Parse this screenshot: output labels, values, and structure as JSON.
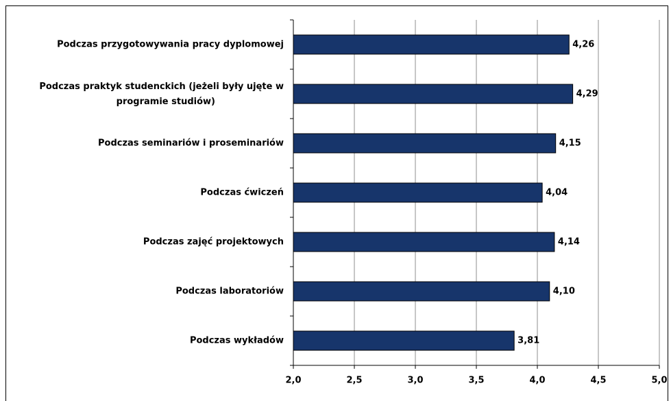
{
  "chart_data": {
    "type": "bar",
    "orientation": "horizontal",
    "categories": [
      "Podczas przygotowywania pracy dyplomowej",
      "Podczas praktyk studenckich (jeżeli były ujęte w programie studiów)",
      "Podczas seminariów i proseminariów",
      "Podczas ćwiczeń",
      "Podczas zajęć projektowych",
      "Podczas laboratoriów",
      "Podczas wykładów"
    ],
    "values": [
      4.26,
      4.29,
      4.15,
      4.04,
      4.14,
      4.1,
      3.81
    ],
    "value_labels": [
      "4,26",
      "4,29",
      "4,15",
      "4,04",
      "4,14",
      "4,10",
      "3,81"
    ],
    "color": "#17356b",
    "xlim": [
      2,
      5
    ],
    "xticks": [
      {
        "value": 2,
        "label": "2,0"
      },
      {
        "value": 2.5,
        "label": "2,5"
      },
      {
        "value": 3,
        "label": "3,0"
      },
      {
        "value": 3.5,
        "label": "3,5"
      },
      {
        "value": 4,
        "label": "4,0"
      },
      {
        "value": 4.5,
        "label": "4,5"
      },
      {
        "value": 5,
        "label": "5,0"
      }
    ],
    "grid": true
  }
}
